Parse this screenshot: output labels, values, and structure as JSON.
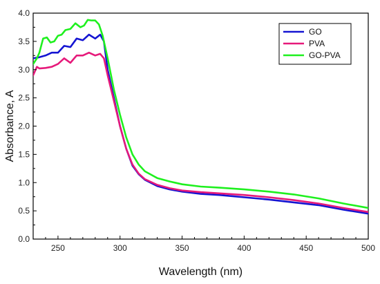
{
  "chart_data": {
    "type": "line",
    "title": "",
    "xlabel": "Wavelength (nm)",
    "ylabel": "Absorbance, A",
    "xlim": [
      230,
      500
    ],
    "ylim": [
      0.0,
      4.0
    ],
    "xticks": [
      250,
      300,
      350,
      400,
      450,
      500
    ],
    "yticks": [
      0.0,
      0.5,
      1.0,
      1.5,
      2.0,
      2.5,
      3.0,
      3.5,
      4.0
    ],
    "xtick_labels": [
      "250",
      "300",
      "350",
      "400",
      "450",
      "500"
    ],
    "ytick_labels": [
      "0.0",
      "0.5",
      "1.0",
      "1.5",
      "2.0",
      "2.5",
      "3.0",
      "3.5",
      "4.0"
    ],
    "grid": false,
    "legend_position": "top-right",
    "series": [
      {
        "name": "GO",
        "color": "#1414d2",
        "x": [
          230,
          235,
          240,
          245,
          250,
          255,
          260,
          265,
          270,
          275,
          280,
          284,
          287,
          290,
          295,
          300,
          305,
          310,
          315,
          320,
          330,
          340,
          350,
          365,
          380,
          400,
          420,
          440,
          460,
          480,
          500
        ],
        "y": [
          3.2,
          3.22,
          3.25,
          3.3,
          3.3,
          3.42,
          3.4,
          3.55,
          3.52,
          3.62,
          3.55,
          3.62,
          3.5,
          3.0,
          2.5,
          2.0,
          1.6,
          1.3,
          1.15,
          1.05,
          0.94,
          0.88,
          0.84,
          0.8,
          0.78,
          0.74,
          0.7,
          0.65,
          0.6,
          0.52,
          0.45
        ]
      },
      {
        "name": "PVA",
        "color": "#e6197a",
        "x": [
          230,
          233,
          235,
          240,
          245,
          250,
          255,
          260,
          265,
          270,
          275,
          280,
          284,
          287,
          290,
          295,
          300,
          305,
          310,
          315,
          320,
          330,
          340,
          350,
          365,
          380,
          400,
          420,
          440,
          460,
          480,
          500
        ],
        "y": [
          2.9,
          3.05,
          3.02,
          3.03,
          3.05,
          3.1,
          3.2,
          3.12,
          3.25,
          3.25,
          3.3,
          3.25,
          3.28,
          3.2,
          2.9,
          2.45,
          2.0,
          1.6,
          1.32,
          1.16,
          1.06,
          0.96,
          0.9,
          0.86,
          0.83,
          0.81,
          0.78,
          0.74,
          0.69,
          0.63,
          0.55,
          0.48
        ]
      },
      {
        "name": "GO-PVA",
        "color": "#1ef01e",
        "x": [
          230,
          233,
          235,
          238,
          241,
          244,
          247,
          250,
          253,
          256,
          260,
          264,
          268,
          271,
          274,
          277,
          280,
          283,
          286,
          290,
          295,
          300,
          305,
          310,
          315,
          320,
          330,
          340,
          350,
          365,
          380,
          400,
          420,
          440,
          460,
          480,
          500
        ],
        "y": [
          3.1,
          3.2,
          3.3,
          3.55,
          3.57,
          3.48,
          3.5,
          3.6,
          3.62,
          3.7,
          3.72,
          3.82,
          3.75,
          3.78,
          3.88,
          3.87,
          3.87,
          3.8,
          3.6,
          3.2,
          2.65,
          2.2,
          1.8,
          1.5,
          1.32,
          1.2,
          1.08,
          1.02,
          0.97,
          0.93,
          0.91,
          0.88,
          0.84,
          0.79,
          0.72,
          0.63,
          0.55
        ]
      }
    ]
  }
}
